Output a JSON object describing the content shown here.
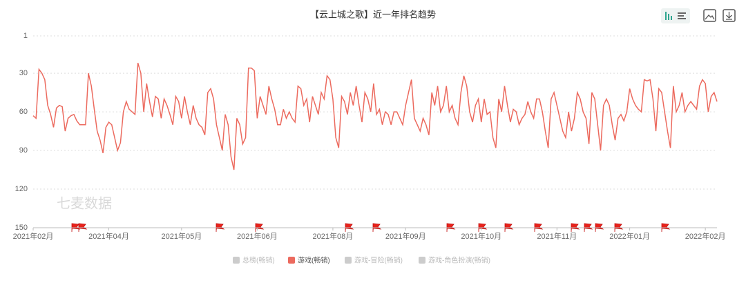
{
  "chart_data": {
    "type": "line",
    "title": "【云上城之歌】近一年排名趋势",
    "watermark": "七麦数据",
    "ylim": [
      150,
      1
    ],
    "yticks": [
      1,
      30,
      60,
      90,
      120,
      150
    ],
    "xlim": [
      0,
      235
    ],
    "xticks": [
      {
        "value": 0,
        "label": "2021年02月"
      },
      {
        "value": 26,
        "label": "2021年04月"
      },
      {
        "value": 51,
        "label": "2021年05月"
      },
      {
        "value": 77,
        "label": "2021年06月"
      },
      {
        "value": 103,
        "label": "2021年08月"
      },
      {
        "value": 128,
        "label": "2021年09月"
      },
      {
        "value": 154,
        "label": "2021年10月"
      },
      {
        "value": 180,
        "label": "2021年11月"
      },
      {
        "value": 205,
        "label": "2022年01月"
      },
      {
        "value": 231,
        "label": "2022年02月"
      }
    ],
    "grid": true,
    "series": [
      {
        "color": "#ec6a5e",
        "values": [
          63,
          65,
          27,
          30,
          35,
          55,
          62,
          72,
          57,
          55,
          56,
          75,
          65,
          63,
          62,
          67,
          70,
          70,
          70,
          30,
          40,
          58,
          75,
          82,
          92,
          72,
          68,
          70,
          80,
          90,
          84,
          60,
          52,
          58,
          60,
          62,
          22,
          30,
          60,
          38,
          52,
          64,
          48,
          50,
          65,
          50,
          55,
          62,
          70,
          48,
          52,
          65,
          48,
          60,
          70,
          55,
          65,
          70,
          72,
          78,
          45,
          42,
          50,
          70,
          80,
          90,
          62,
          70,
          95,
          105,
          65,
          70,
          85,
          80,
          26,
          26,
          28,
          65,
          48,
          55,
          62,
          40,
          50,
          58,
          70,
          70,
          58,
          65,
          60,
          65,
          68,
          40,
          42,
          55,
          50,
          68,
          48,
          55,
          62,
          45,
          50,
          32,
          35,
          50,
          80,
          88,
          48,
          52,
          62,
          45,
          55,
          40,
          55,
          68,
          45,
          50,
          60,
          38,
          62,
          58,
          70,
          60,
          62,
          70,
          60,
          60,
          65,
          70,
          55,
          45,
          35,
          65,
          70,
          75,
          65,
          70,
          78,
          45,
          55,
          40,
          60,
          55,
          40,
          60,
          55,
          65,
          70,
          45,
          32,
          40,
          60,
          68,
          55,
          50,
          68,
          50,
          62,
          60,
          80,
          88,
          50,
          60,
          40,
          55,
          68,
          58,
          60,
          70,
          65,
          62,
          52,
          60,
          65,
          50,
          50,
          60,
          75,
          88,
          50,
          45,
          55,
          65,
          75,
          80,
          60,
          75,
          65,
          45,
          50,
          60,
          65,
          85,
          45,
          50,
          70,
          90,
          55,
          50,
          55,
          70,
          82,
          65,
          62,
          67,
          60,
          42,
          50,
          55,
          58,
          60,
          35,
          36,
          35,
          50,
          75,
          42,
          45,
          60,
          75,
          88,
          40,
          60,
          55,
          45,
          60,
          55,
          52,
          55,
          58,
          40,
          35,
          38,
          60,
          48,
          45,
          52
        ]
      }
    ],
    "legend": [
      {
        "name": "总榜(畅销)",
        "color": "#cccccc"
      },
      {
        "name": "游戏(畅销)",
        "color": "#ec6a5e"
      },
      {
        "name": "游戏-冒险(畅销)",
        "color": "#cccccc"
      },
      {
        "name": "游戏-角色扮演(畅销)",
        "color": "#cccccc"
      }
    ]
  }
}
